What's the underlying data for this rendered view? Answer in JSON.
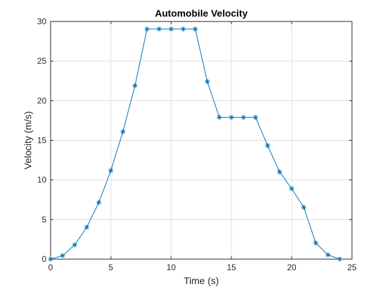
{
  "chart_data": {
    "type": "line",
    "title": "Automobile Velocity",
    "xlabel": "Time (s)",
    "ylabel": "Velocity (m/s)",
    "xlim": [
      0,
      25
    ],
    "ylim": [
      0,
      30
    ],
    "xticks": [
      0,
      5,
      10,
      15,
      20,
      25
    ],
    "yticks": [
      0,
      5,
      10,
      15,
      20,
      25,
      30
    ],
    "grid": true,
    "marker": "asterisk",
    "series": [
      {
        "color": "#0072BD",
        "x": [
          0,
          1,
          2,
          3,
          4,
          5,
          6,
          7,
          8,
          9,
          10,
          11,
          12,
          13,
          14,
          15,
          16,
          17,
          18,
          19,
          20,
          21,
          22,
          23,
          24
        ],
        "y": [
          0,
          0.45,
          1.79,
          4.02,
          7.15,
          11.18,
          16.09,
          21.9,
          29.05,
          29.05,
          29.05,
          29.05,
          29.05,
          22.42,
          17.9,
          17.9,
          17.9,
          17.9,
          14.34,
          11.01,
          8.9,
          6.54,
          2.03,
          0.55,
          0
        ]
      }
    ]
  }
}
